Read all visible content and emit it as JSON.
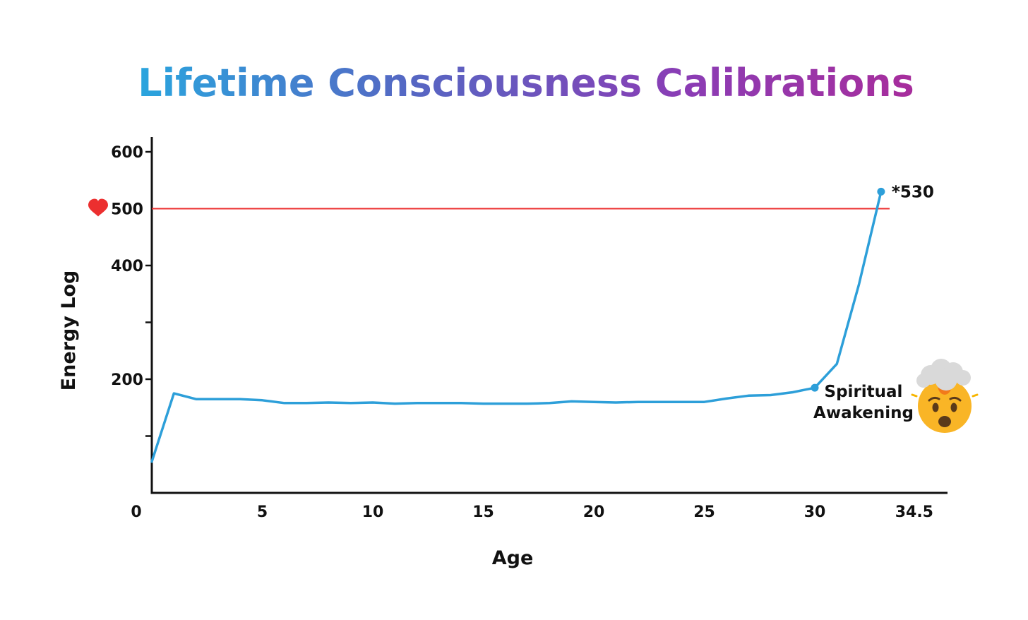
{
  "chart_data": {
    "type": "line",
    "title": "Lifetime Consciousness Calibrations",
    "xlabel": "Age",
    "ylabel": "Energy Log",
    "xlim": [
      0,
      36
    ],
    "ylim": [
      0,
      600
    ],
    "x_ticks": [
      0,
      5,
      10,
      15,
      20,
      25,
      30,
      34.5
    ],
    "x_tick_labels": [
      "0",
      "5",
      "10",
      "15",
      "20",
      "25",
      "30",
      "34.5"
    ],
    "y_ticks": [
      100,
      200,
      300,
      400,
      500,
      600
    ],
    "y_tick_labels": [
      "",
      "200",
      "",
      "400",
      "500",
      "600"
    ],
    "grid": false,
    "legend": "none",
    "reference_line": {
      "value": 500,
      "label": "500",
      "color": "#ec2f2f",
      "icon": "heart-icon"
    },
    "series": [
      {
        "color": "#2d9fd9",
        "x": [
          0,
          1,
          2,
          3,
          4,
          5,
          6,
          7,
          8,
          9,
          10,
          11,
          12,
          13,
          14,
          15,
          16,
          17,
          18,
          19,
          20,
          21,
          22,
          23,
          24,
          25,
          26,
          27,
          28,
          29,
          30,
          31,
          32,
          33
        ],
        "y": [
          55,
          175,
          165,
          165,
          165,
          163,
          158,
          158,
          159,
          158,
          159,
          157,
          158,
          158,
          158,
          157,
          157,
          157,
          158,
          161,
          160,
          159,
          160,
          160,
          160,
          160,
          166,
          171,
          172,
          177,
          185,
          227,
          367,
          530
        ]
      }
    ],
    "annotations": [
      {
        "name": "peak",
        "x": 33,
        "y": 530,
        "text": "*530"
      },
      {
        "name": "awakening",
        "x": 30,
        "y": 185,
        "lines": [
          "Spiritual",
          "Awakening"
        ],
        "icon": "exploding-head-icon"
      }
    ],
    "colors": {
      "title_gradient": [
        "#2aa5de",
        "#5567c3",
        "#8a3db5",
        "#a72d9c"
      ],
      "axis": "#111111",
      "heart": "#ec2f2f",
      "emoji_face": "#f9b526",
      "emoji_cloud": "#d9d9d9"
    }
  }
}
